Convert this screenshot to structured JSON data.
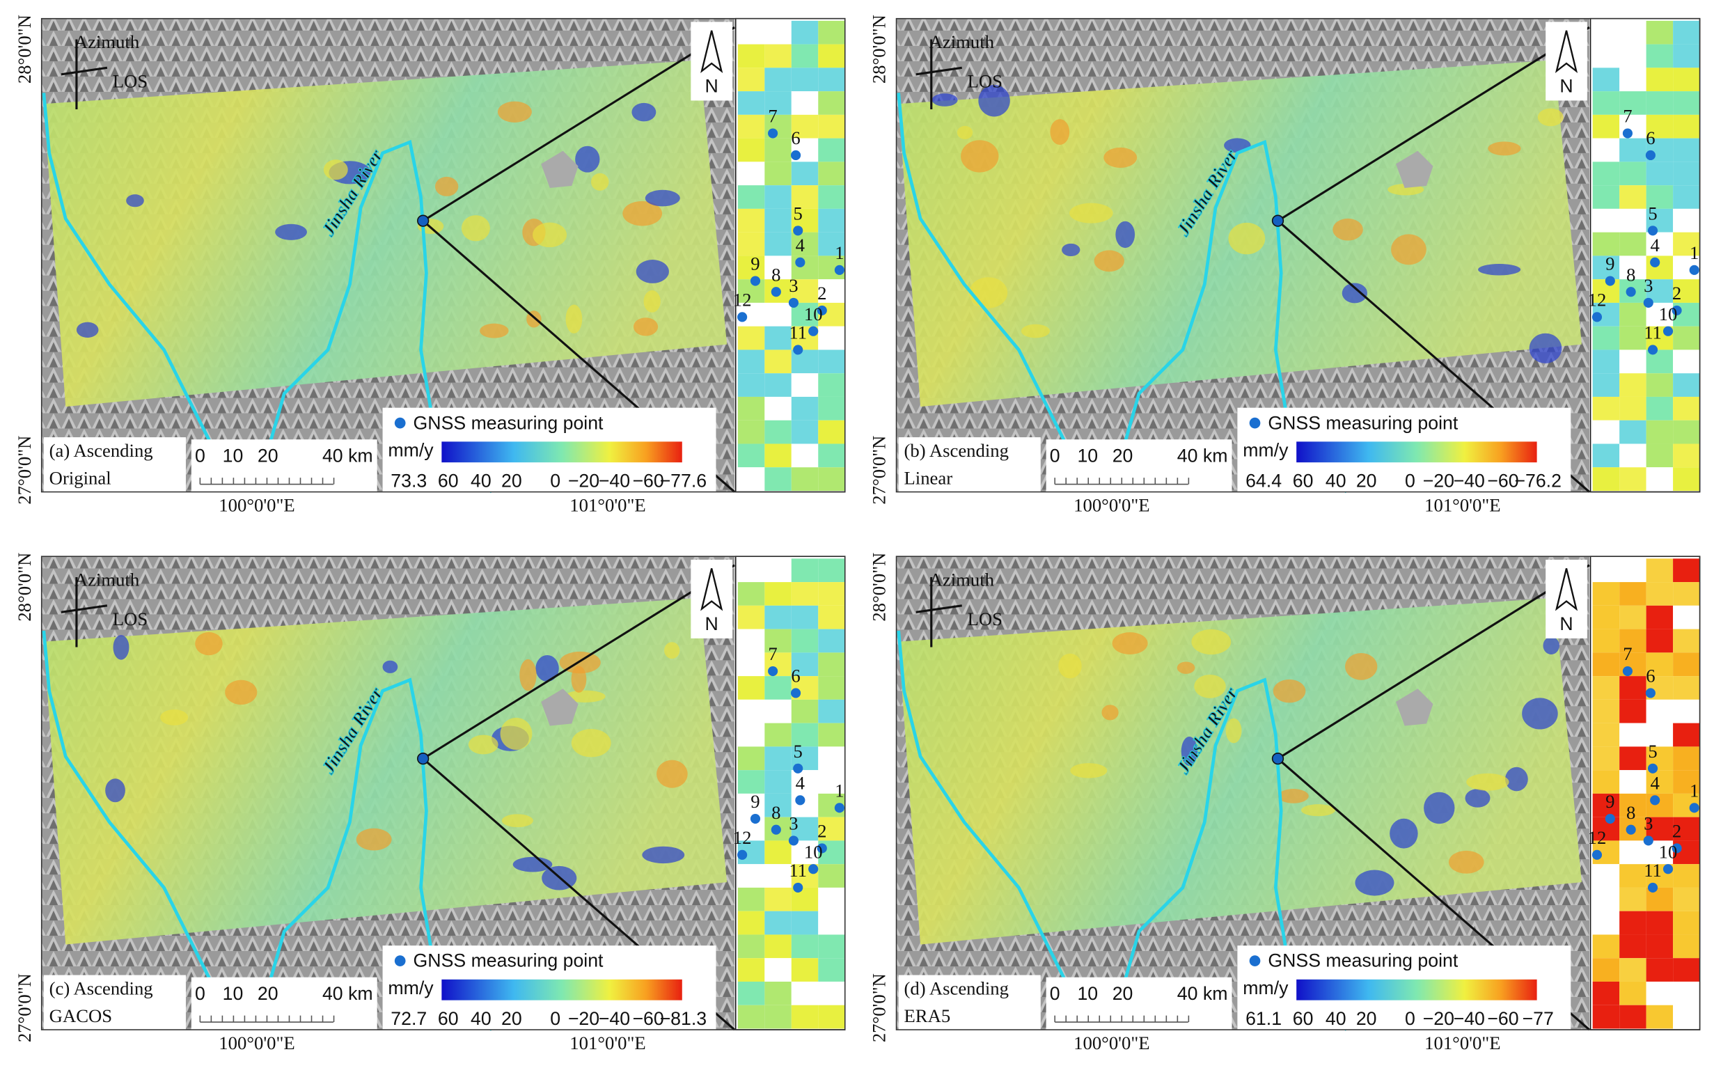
{
  "panels": [
    {
      "label": "(a) Ascending",
      "sublabel": "Original",
      "colorbar_ticks": [
        "73.3",
        "60",
        "40",
        "20",
        "0",
        "−20",
        "−40",
        "−60",
        "−77.6"
      ]
    },
    {
      "label": "(b) Ascending",
      "sublabel": "Linear",
      "colorbar_ticks": [
        "64.4",
        "60",
        "40",
        "20",
        "0",
        "−20",
        "−40",
        "−60",
        "−76.2"
      ]
    },
    {
      "label": "(c) Ascending",
      "sublabel": "GACOS",
      "colorbar_ticks": [
        "72.7",
        "60",
        "40",
        "20",
        "0",
        "−20",
        "−40",
        "−60",
        "−81.3"
      ]
    },
    {
      "label": "(d) Ascending",
      "sublabel": "ERA5",
      "colorbar_ticks": [
        "61.1",
        "60",
        "40",
        "20",
        "0",
        "−20",
        "−40",
        "−60",
        "−77"
      ]
    }
  ],
  "azimuth": "Azimuth",
  "los": "LOS",
  "north": "N",
  "river": "Jinsha River",
  "legend": "GNSS measuring point",
  "unit": "mm/y",
  "scale_labels": [
    "0",
    "10",
    "20",
    "40 km"
  ],
  "lat_labels": [
    "28°0'0\"N",
    "27°0'0\"N"
  ],
  "lon_labels": [
    "100°0'0\"E",
    "101°0'0\"E"
  ],
  "points": [
    "1",
    "2",
    "3",
    "4",
    "5",
    "6",
    "7",
    "8",
    "9",
    "10",
    "11",
    "12"
  ]
}
